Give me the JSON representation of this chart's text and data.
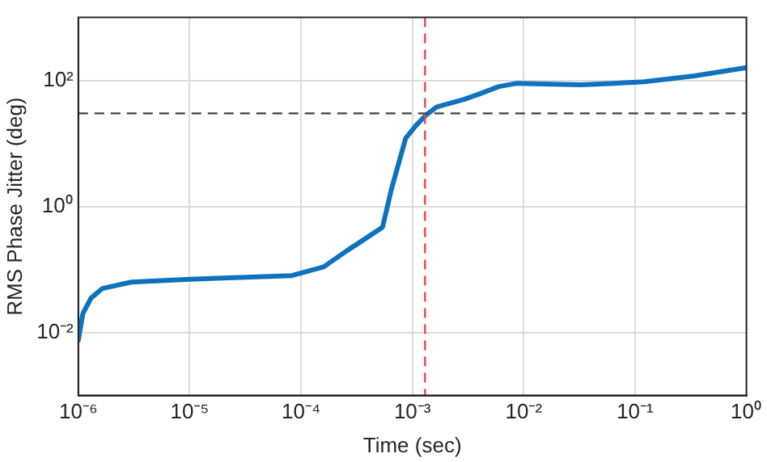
{
  "chart_data": {
    "type": "line",
    "xlabel": "Time (sec)",
    "ylabel": "RMS Phase Jitter (deg)",
    "log": "xy",
    "grid": true,
    "legend": false,
    "marker": "none",
    "line_style": "solid",
    "xlim": [
      1e-06,
      1
    ],
    "ylim": [
      0.001,
      1000.0
    ],
    "xticks": [
      {
        "value": 1e-06,
        "label": "10⁻⁶"
      },
      {
        "value": 1e-05,
        "label": "10⁻⁵"
      },
      {
        "value": 0.0001,
        "label": "10⁻⁴"
      },
      {
        "value": 0.001,
        "label": "10⁻³"
      },
      {
        "value": 0.01,
        "label": "10⁻²"
      },
      {
        "value": 0.1,
        "label": "10⁻¹"
      },
      {
        "value": 1,
        "label": "10⁰"
      }
    ],
    "yticks": [
      {
        "value": 0.01,
        "label": "10⁻²"
      },
      {
        "value": 1,
        "label": "10⁰"
      },
      {
        "value": 100,
        "label": "10²"
      }
    ],
    "ref_lines": [
      {
        "axis": "y",
        "value": 30,
        "color": "#404040",
        "line_style": "dashed"
      },
      {
        "axis": "x",
        "value": 0.0013,
        "color": "#e8474c",
        "line_style": "dashed"
      }
    ],
    "series": [
      {
        "color": "#0e72bd",
        "x": [
          1e-06,
          1.1e-06,
          1.3e-06,
          1.65e-06,
          3e-06,
          1e-05,
          8.3e-05,
          0.00016,
          0.00026,
          0.00037,
          0.00054,
          0.00065,
          0.00087,
          0.00107,
          0.00132,
          0.00166,
          0.0029,
          0.0039,
          0.006,
          0.0087,
          0.033,
          0.12,
          0.34,
          1
        ],
        "values": [
          0.0075,
          0.02,
          0.035,
          0.05,
          0.063,
          0.07,
          0.08,
          0.11,
          0.2,
          0.3,
          0.47,
          1.9,
          12,
          19,
          28,
          38,
          50,
          60,
          80,
          90,
          85,
          95,
          118,
          160
        ]
      }
    ]
  }
}
